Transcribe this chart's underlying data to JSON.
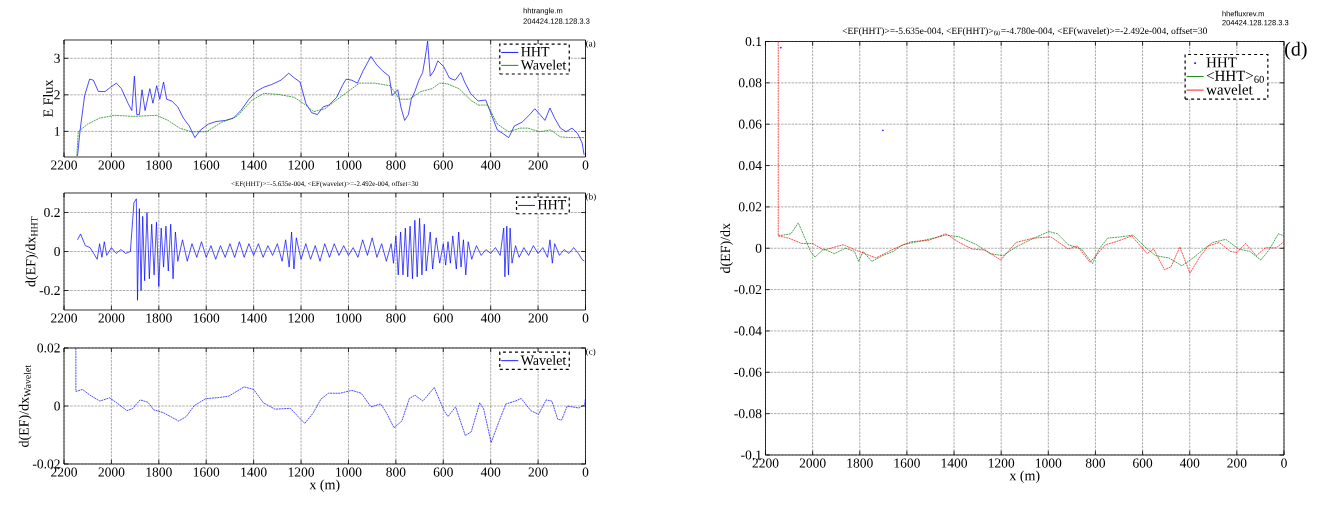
{
  "chart_data": [
    {
      "type": "line",
      "ylabel": "E Flux",
      "xlim": [
        2200,
        0
      ],
      "xticks": [
        2200,
        2000,
        1800,
        1600,
        1400,
        1200,
        1000,
        800,
        600,
        400,
        200,
        0
      ],
      "ylim": [
        0.3,
        3.5
      ],
      "yticks": [
        1,
        2,
        3
      ],
      "grid": true,
      "legend": "top right",
      "line_style": "dashed",
      "annotations": [
        "(a)",
        "hhtrangle.m",
        "204424.128.128.3.3"
      ],
      "series": [
        {
          "name": "HHT",
          "color": "#0000ff",
          "line_style": "solid",
          "x": [
            2143,
            2132,
            2113,
            2092,
            2076,
            2055,
            2027,
            2003,
            1979,
            1958,
            1930,
            1914,
            1903,
            1893,
            1882,
            1871,
            1858,
            1838,
            1825,
            1809,
            1796,
            1780,
            1767,
            1745,
            1720,
            1696,
            1672,
            1648,
            1624,
            1591,
            1559,
            1519,
            1486,
            1454,
            1422,
            1390,
            1357,
            1325,
            1285,
            1252,
            1228,
            1204,
            1180,
            1155,
            1131,
            1107,
            1083,
            1050,
            1026,
            1010,
            986,
            962,
            938,
            905,
            881,
            857,
            828,
            816,
            792,
            779,
            763,
            747,
            735,
            720,
            703,
            687,
            676,
            666,
            655,
            639,
            623,
            598,
            574,
            550,
            526,
            510,
            485,
            453,
            421,
            397,
            372,
            348,
            324,
            300,
            268,
            235,
            214,
            192,
            171,
            150,
            130,
            106,
            82,
            57,
            33,
            14,
            6
          ],
          "values": [
            0.33,
            1.04,
            1.98,
            2.43,
            2.4,
            2.09,
            2.09,
            2.21,
            2.32,
            2.17,
            1.77,
            1.57,
            2.51,
            1.46,
            1.46,
            2.14,
            1.57,
            2.17,
            1.77,
            2.25,
            1.88,
            2.35,
            1.88,
            1.83,
            1.67,
            1.36,
            1.15,
            0.83,
            1.04,
            1.2,
            1.27,
            1.3,
            1.36,
            1.57,
            1.86,
            2.09,
            2.21,
            2.28,
            2.4,
            2.59,
            2.46,
            2.35,
            1.77,
            1.51,
            1.46,
            1.67,
            1.72,
            1.93,
            2.25,
            2.43,
            2.4,
            2.32,
            2.66,
            3.05,
            2.82,
            2.66,
            2.51,
            1.98,
            2.14,
            1.67,
            1.3,
            1.46,
            1.88,
            2.09,
            2.4,
            2.61,
            3.03,
            3.47,
            2.51,
            2.66,
            2.93,
            2.77,
            2.46,
            2.4,
            2.61,
            2.35,
            2.04,
            1.83,
            1.86,
            1.46,
            1.04,
            0.94,
            0.83,
            1.15,
            1.25,
            1.46,
            1.62,
            1.46,
            1.3,
            1.64,
            1.36,
            1.09,
            0.99,
            1.09,
            0.94,
            0.68,
            0.36
          ]
        },
        {
          "name": "Wavelet",
          "color": "#008000",
          "x": [
            2146,
            2140,
            2100,
            2051,
            1987,
            1906,
            1809,
            1761,
            1712,
            1664,
            1599,
            1535,
            1470,
            1406,
            1357,
            1293,
            1228,
            1180,
            1147,
            1099,
            1050,
            1002,
            954,
            889,
            824,
            784,
            743,
            695,
            647,
            615,
            582,
            534,
            485,
            453,
            413,
            372,
            324,
            276,
            243,
            194,
            147,
            106,
            65,
            6
          ],
          "values": [
            0.33,
            0.99,
            1.2,
            1.36,
            1.44,
            1.41,
            1.44,
            1.3,
            1.09,
            0.99,
            0.99,
            1.25,
            1.41,
            1.86,
            2.04,
            2.01,
            1.93,
            1.72,
            1.54,
            1.62,
            1.86,
            2.09,
            2.32,
            2.32,
            2.25,
            1.88,
            1.88,
            2.09,
            2.17,
            2.32,
            2.3,
            2.17,
            1.86,
            1.72,
            1.72,
            1.2,
            0.99,
            1.09,
            1.09,
            0.99,
            1.04,
            0.85,
            0.83,
            0.83
          ]
        }
      ]
    },
    {
      "type": "line",
      "title": "<EF(HHT)>=-5.635e-004, <EF(wavelet)>=-2.492e-004, offset=30",
      "ylabel": "d(EF)/dx$_{HHT}$",
      "xlim": [
        2200,
        0
      ],
      "xticks": [
        2200,
        2000,
        1800,
        1600,
        1400,
        1200,
        1000,
        800,
        600,
        400,
        200,
        0
      ],
      "ylim": [
        -0.3,
        0.3
      ],
      "yticks": [
        -0.2,
        0,
        0.2
      ],
      "grid": true,
      "legend": "top right",
      "line_style": "solid",
      "annotations": [
        "(b)"
      ],
      "series": [
        {
          "name": "HHT",
          "color": "#0000ff",
          "x": [
            2143,
            2130,
            2110,
            2090,
            2075,
            2060,
            2050,
            2040,
            2030,
            2020,
            2000,
            1980,
            1960,
            1940,
            1920,
            1905,
            1900,
            1895,
            1890,
            1882,
            1875,
            1868,
            1860,
            1850,
            1840,
            1830,
            1820,
            1810,
            1800,
            1790,
            1780,
            1770,
            1760,
            1750,
            1740,
            1730,
            1720,
            1700,
            1680,
            1660,
            1640,
            1620,
            1600,
            1580,
            1560,
            1540,
            1520,
            1500,
            1480,
            1460,
            1440,
            1420,
            1400,
            1380,
            1360,
            1340,
            1320,
            1300,
            1280,
            1265,
            1250,
            1240,
            1230,
            1220,
            1200,
            1180,
            1160,
            1140,
            1120,
            1100,
            1080,
            1060,
            1040,
            1020,
            1000,
            980,
            960,
            940,
            920,
            900,
            880,
            860,
            840,
            820,
            810,
            800,
            790,
            780,
            770,
            760,
            750,
            740,
            730,
            720,
            710,
            700,
            690,
            680,
            672,
            665,
            660,
            655,
            645,
            630,
            615,
            600,
            590,
            580,
            570,
            560,
            545,
            535,
            525,
            515,
            505,
            495,
            480,
            460,
            440,
            420,
            400,
            380,
            360,
            345,
            340,
            332,
            325,
            318,
            310,
            295,
            280,
            260,
            240,
            220,
            200,
            180,
            160,
            150,
            140,
            130,
            110,
            90,
            70,
            50,
            30,
            15,
            5
          ],
          "values": [
            0.06,
            0.09,
            0.03,
            0.02,
            -0.01,
            -0.04,
            0.04,
            -0.03,
            0.05,
            -0.02,
            0.02,
            -0.01,
            0.01,
            -0.01,
            0.0,
            0.25,
            null,
            0.27,
            -0.25,
            0.22,
            -0.2,
            0.18,
            -0.15,
            0.2,
            -0.14,
            0.14,
            -0.12,
            0.15,
            -0.18,
            0.12,
            -0.08,
            0.13,
            -0.1,
            0.14,
            -0.14,
            0.1,
            -0.05,
            0.06,
            -0.05,
            0.04,
            -0.03,
            0.05,
            -0.03,
            0.03,
            -0.04,
            0.03,
            -0.03,
            0.04,
            -0.03,
            0.05,
            -0.03,
            0.04,
            -0.02,
            0.04,
            -0.03,
            0.03,
            -0.02,
            0.04,
            -0.05,
            0.06,
            -0.08,
            0.1,
            -0.09,
            0.07,
            -0.04,
            0.04,
            -0.04,
            0.03,
            -0.05,
            0.04,
            -0.03,
            0.04,
            -0.02,
            0.03,
            -0.02,
            0.02,
            -0.03,
            0.06,
            -0.02,
            0.07,
            -0.03,
            0.04,
            -0.05,
            0.04,
            -0.06,
            0.08,
            -0.12,
            0.1,
            -0.12,
            0.12,
            -0.13,
            0.13,
            -0.14,
            0.16,
            -0.13,
            0.17,
            -0.12,
            0.14,
            -0.1,
            null,
            null,
            0.1,
            -0.09,
            0.07,
            -0.06,
            0.04,
            -0.07,
            0.05,
            -0.06,
            0.08,
            -0.09,
            0.1,
            -0.08,
            0.06,
            -0.12,
            0.05,
            -0.04,
            0.03,
            -0.02,
            0.01,
            -0.01,
            0.02,
            -0.02,
            0.12,
            -0.13,
            0.13,
            -0.12,
            0.12,
            -0.06,
            0.03,
            -0.03,
            0.02,
            -0.02,
            0.03,
            -0.01,
            0.02,
            -0.03,
            0.06,
            -0.06,
            0.04,
            -0.02,
            0.01,
            -0.01,
            0.02,
            -0.01,
            -0.04,
            -0.05
          ]
        }
      ]
    },
    {
      "type": "line",
      "xlabel": "x (m)",
      "ylabel": "d(EF)/dx$_{Wavelet}$",
      "xlim": [
        2200,
        0
      ],
      "xticks": [
        2200,
        2000,
        1800,
        1600,
        1400,
        1200,
        1000,
        800,
        600,
        400,
        200,
        0
      ],
      "ylim": [
        -0.02,
        0.02
      ],
      "yticks": [
        -0.02,
        0,
        0.02
      ],
      "grid": true,
      "legend": "top right",
      "line_style": "dashed",
      "annotations": [
        "(c)"
      ],
      "series": [
        {
          "name": "Wavelet",
          "color": "#0000ff",
          "x": [
            2150,
            2150,
            2122,
            2090,
            2049,
            2008,
            1976,
            1935,
            1911,
            1879,
            1846,
            1822,
            1781,
            1716,
            1684,
            1651,
            1603,
            1538,
            1505,
            1440,
            1400,
            1359,
            1310,
            1245,
            1213,
            1184,
            1148,
            1116,
            1084,
            1035,
            986,
            946,
            905,
            864,
            840,
            808,
            775,
            743,
            719,
            686,
            638,
            597,
            580,
            548,
            507,
            482,
            446,
            430,
            398,
            369,
            336,
            296,
            271,
            231,
            198,
            166,
            142,
            117,
            101,
            77,
            28,
            4,
            0
          ],
          "values": [
            0.02,
            0.005,
            0.0057,
            0.0037,
            0.0017,
            0.0028,
            0.001,
            -0.0016,
            -0.0009,
            0.0021,
            0.0013,
            -0.0013,
            -0.0023,
            -0.0052,
            -0.0036,
            0.0001,
            0.0025,
            0.003,
            0.0034,
            0.0066,
            0.0057,
            0.0011,
            -0.0011,
            -0.0008,
            -0.0036,
            -0.006,
            -0.0023,
            0.0024,
            0.0044,
            0.0044,
            0.0054,
            0.0044,
            -0.0003,
            0.0007,
            -0.0023,
            -0.0075,
            -0.0052,
            0.0026,
            0.0037,
            0.0017,
            0.0064,
            -0.0016,
            -0.0036,
            -0.0003,
            -0.0102,
            -0.0089,
            0.0011,
            -0.0009,
            -0.0126,
            -0.0062,
            0.0007,
            0.0017,
            0.0026,
            -0.0016,
            -0.0029,
            0.0021,
            0.0017,
            -0.0046,
            -0.0049,
            0.0,
            -0.0007,
            0.0004,
            0.0026
          ]
        }
      ]
    },
    {
      "type": "line",
      "title": "<EF(HHT)>=-5.635e-004, <EF(HHT)>$_{60}$=-4.780e-004, <EF(wavelet)>=-2.492e-004, offset=30",
      "xlabel": "x (m)",
      "ylabel": "d(EF)/dx",
      "xlim": [
        2200,
        0
      ],
      "xticks": [
        2200,
        2000,
        1800,
        1600,
        1400,
        1200,
        1000,
        800,
        600,
        400,
        200,
        0
      ],
      "ylim": [
        -0.1,
        0.1
      ],
      "yticks": [
        -0.1,
        -0.08,
        -0.06,
        -0.04,
        -0.02,
        0,
        0.02,
        0.04,
        0.06,
        0.08,
        0.1
      ],
      "grid": true,
      "legend": "top right",
      "line_style": "dashed",
      "annotations": [
        "(d)",
        "hhefluxrev.m",
        "204424.128.128.3.3"
      ],
      "series": [
        {
          "name": "HHT",
          "type": "scatter",
          "color": "#0000ff",
          "x": [
            2135,
            1702
          ],
          "values": [
            0.097,
            0.057
          ]
        },
        {
          "name": "<HHT>$_{60}$",
          "color": "#008000",
          "x": [
            2146,
            2092,
            2061,
            2037,
            2009,
            1990,
            1953,
            1907,
            1861,
            1823,
            1805,
            1786,
            1749,
            1703,
            1657,
            1619,
            1545,
            1471,
            1434,
            1378,
            1304,
            1248,
            1193,
            1137,
            1081,
            998,
            961,
            915,
            859,
            812,
            785,
            748,
            692,
            640,
            590,
            544,
            488,
            433,
            386,
            340,
            303,
            247,
            192,
            145,
            98,
            61,
            24,
            0
          ],
          "values": [
            0.006,
            0.007,
            0.0123,
            0.006,
            -0.0015,
            -0.0043,
            -0.0004,
            -0.0026,
            0.0,
            -0.0015,
            -0.0064,
            -0.0015,
            -0.0064,
            -0.0036,
            -0.0015,
            0.0017,
            0.0034,
            0.0053,
            0.0064,
            0.0055,
            0.0017,
            -0.0026,
            -0.0036,
            0.0006,
            0.0038,
            0.0081,
            0.007,
            0.0017,
            -0.0004,
            -0.0074,
            -0.0004,
            0.0049,
            0.0055,
            0.0064,
            0.0006,
            -0.0036,
            -0.0047,
            -0.0085,
            -0.0047,
            -0.0004,
            0.0028,
            0.0043,
            -0.0004,
            -0.0015,
            -0.0057,
            -0.0004,
            0.007,
            0.006
          ]
        },
        {
          "name": "wavelet",
          "color": "#ff0000",
          "x": [
            2146,
            2146,
            2102,
            2046,
            2000,
            1953,
            1870,
            1805,
            1731,
            1657,
            1582,
            1508,
            1434,
            1378,
            1323,
            1267,
            1202,
            1137,
            1063,
            989,
            915,
            877,
            823,
            757,
            711,
            646,
            581,
            553,
            507,
            479,
            442,
            399,
            358,
            321,
            275,
            228,
            200,
            163,
            117,
            80,
            33,
            0
          ],
          "values": [
            0.1,
            0.006,
            0.0049,
            0.0023,
            0.0023,
            -0.0009,
            0.0017,
            -0.0015,
            -0.0047,
            -0.0004,
            0.0032,
            0.0038,
            0.007,
            0.0028,
            -0.0004,
            -0.0009,
            -0.0057,
            0.0028,
            0.0049,
            0.0055,
            -0.0004,
            0.0011,
            -0.0068,
            0.0017,
            0.0032,
            0.006,
            -0.0026,
            -0.0004,
            -0.0104,
            -0.0089,
            0.0006,
            -0.0121,
            -0.0043,
            0.0011,
            0.0028,
            -0.0015,
            -0.0021,
            0.0023,
            -0.0036,
            0.0002,
            0.0002,
            0.0032
          ]
        }
      ]
    }
  ]
}
